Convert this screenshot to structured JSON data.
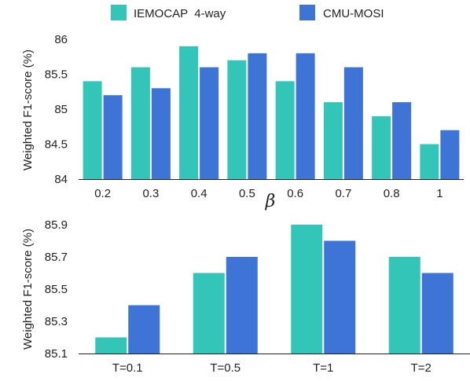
{
  "legend": {
    "items": [
      {
        "label": "IEMOCAP  4-way",
        "color": "#33c6b8"
      },
      {
        "label": "CMU-MOSI",
        "color": "#3d74d6"
      }
    ]
  },
  "chart_data": [
    {
      "type": "bar",
      "categories": [
        "0.2",
        "0.3",
        "0.4",
        "0.5",
        "0.6",
        "0.7",
        "0.8",
        "1"
      ],
      "series": [
        {
          "name": "IEMOCAP  4-way",
          "color": "#33c6b8",
          "values": [
            85.4,
            85.6,
            85.9,
            85.7,
            85.4,
            85.1,
            84.9,
            84.5
          ]
        },
        {
          "name": "CMU-MOSI",
          "color": "#3d74d6",
          "values": [
            85.2,
            85.3,
            85.6,
            85.8,
            85.8,
            85.6,
            85.1,
            84.7
          ]
        }
      ],
      "ylim": [
        84,
        86
      ],
      "yticks": [
        "84",
        "84.5",
        "85",
        "85.5",
        "86"
      ],
      "ylabel": "Weighted F1-score (%)",
      "xlabel": "β",
      "grid": false,
      "legend": "top-center"
    },
    {
      "type": "bar",
      "categories": [
        "T=0.1",
        "T=0.5",
        "T=1",
        "T=2"
      ],
      "series": [
        {
          "name": "IEMOCAP  4-way",
          "color": "#33c6b8",
          "values": [
            85.2,
            85.6,
            85.9,
            85.7
          ]
        },
        {
          "name": "CMU-MOSI",
          "color": "#3d74d6",
          "values": [
            85.4,
            85.7,
            85.8,
            85.6
          ]
        }
      ],
      "ylim": [
        85.1,
        85.9
      ],
      "yticks": [
        "85.1",
        "85.3",
        "85.5",
        "85.7",
        "85.9"
      ],
      "ylabel": "Weighted F1-score (%)",
      "xlabel": "",
      "grid": false
    }
  ]
}
